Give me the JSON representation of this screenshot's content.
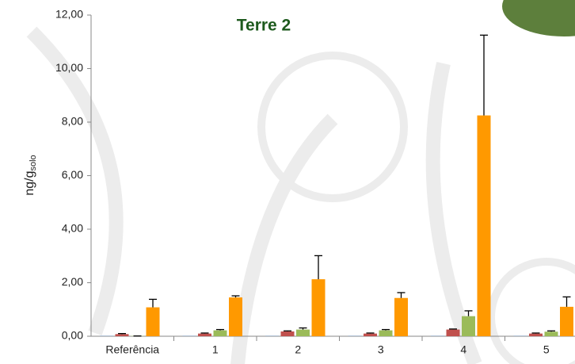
{
  "chart_data": {
    "type": "bar",
    "title": "Terre 2",
    "ylabel": "ng/g",
    "ylabel_sub": "solo",
    "categories": [
      "Referência",
      "1",
      "2",
      "3",
      "4",
      "5"
    ],
    "series": [
      {
        "color": "#4f81bd",
        "values": [
          0.01,
          0.01,
          0.01,
          0.01,
          0.01,
          0.01
        ]
      },
      {
        "color": "#c0504d",
        "values": [
          0.08,
          0.1,
          0.18,
          0.1,
          0.25,
          0.1
        ],
        "errors": [
          0.02,
          0.02,
          0.02,
          0.02,
          0.02,
          0.02
        ]
      },
      {
        "color": "#9bbb59",
        "values": [
          0.01,
          0.22,
          0.25,
          0.22,
          0.75,
          0.17
        ],
        "errors": [
          0.0,
          0.03,
          0.06,
          0.03,
          0.2,
          0.03
        ]
      },
      {
        "color": "#ff9900",
        "values": [
          1.08,
          1.45,
          2.13,
          1.43,
          8.25,
          1.1
        ],
        "errors": [
          0.3,
          0.06,
          0.88,
          0.2,
          3.0,
          0.37
        ]
      }
    ],
    "ylim": [
      0,
      12
    ],
    "yticks": [
      {
        "value": 0,
        "label": "0,00"
      },
      {
        "value": 2,
        "label": "2,00"
      },
      {
        "value": 4,
        "label": "4,00"
      },
      {
        "value": 6,
        "label": "6,00"
      },
      {
        "value": 8,
        "label": "8,00"
      },
      {
        "value": 10,
        "label": "10,00"
      },
      {
        "value": 12,
        "label": "12,00"
      }
    ]
  }
}
